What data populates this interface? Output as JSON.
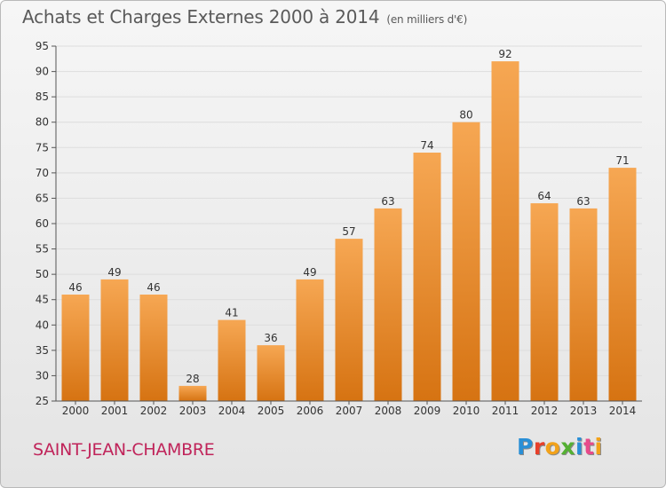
{
  "header": {
    "title": "Achats et Charges Externes 2000 à 2014",
    "unit": "(en milliers d'€)"
  },
  "footer": {
    "commune": "SAINT-JEAN-CHAMBRE",
    "logo_text": "Proxiti",
    "logo_colors": [
      "#2a8fd6",
      "#e8402a",
      "#f2a21a",
      "#55b033",
      "#2a8fd6",
      "#e84a8a",
      "#f2a21a"
    ]
  },
  "colors": {
    "bar_light": "#f6a753",
    "bar_dark": "#d67312",
    "axis": "#555555",
    "grid": "#dddddd"
  },
  "chart_data": {
    "type": "bar",
    "title": "Achats et Charges Externes 2000 à 2014",
    "subtitle": "(en milliers d'€)",
    "xlabel": "",
    "ylabel": "",
    "categories": [
      "2000",
      "2001",
      "2002",
      "2003",
      "2004",
      "2005",
      "2006",
      "2007",
      "2008",
      "2009",
      "2010",
      "2011",
      "2012",
      "2013",
      "2014"
    ],
    "values": [
      46,
      49,
      46,
      28,
      41,
      36,
      49,
      57,
      63,
      74,
      80,
      92,
      64,
      63,
      71
    ],
    "ylim": [
      25,
      95
    ],
    "yticks": [
      25,
      30,
      35,
      40,
      45,
      50,
      55,
      60,
      65,
      70,
      75,
      80,
      85,
      90,
      95
    ],
    "grid": true,
    "legend": "none"
  }
}
